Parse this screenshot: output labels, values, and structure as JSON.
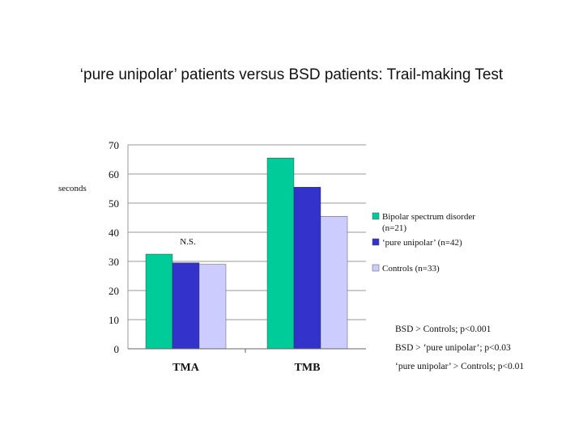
{
  "slide": {
    "title": "‘pure unipolar’ patients versus BSD patients: Trail-making Test"
  },
  "chart_data": {
    "type": "bar",
    "title": "",
    "xlabel": "",
    "ylabel": "seconds",
    "ylim": [
      0,
      70
    ],
    "yticks": [
      0,
      10,
      20,
      30,
      40,
      50,
      60,
      70
    ],
    "grid": true,
    "legend_position": "right",
    "categories": [
      "TMA",
      "TMB"
    ],
    "series": [
      {
        "name": "Bipolar spectrum disorder (n=21)",
        "values": [
          32.5,
          65.5
        ],
        "color": "#00cc99"
      },
      {
        "name": "‘pure unipolar’ (n=42)",
        "values": [
          29.5,
          55.5
        ],
        "color": "#3333cc"
      },
      {
        "name": "Controls (n=33)",
        "values": [
          29,
          45.5
        ],
        "color": "#ccccff"
      }
    ],
    "annotations": [
      "N.S."
    ]
  },
  "legend": {
    "bsd_line1": "Bipolar spectrum disorder",
    "bsd_line2": "(n=21)",
    "pure": "‘pure unipolar’ (n=42)",
    "controls": "Controls (n=33)"
  },
  "stats": [
    "BSD > Controls; p<0.001",
    "BSD > ‘pure unipolar’; p<0.03",
    "‘pure unipolar’ > Controls; p<0.01"
  ]
}
